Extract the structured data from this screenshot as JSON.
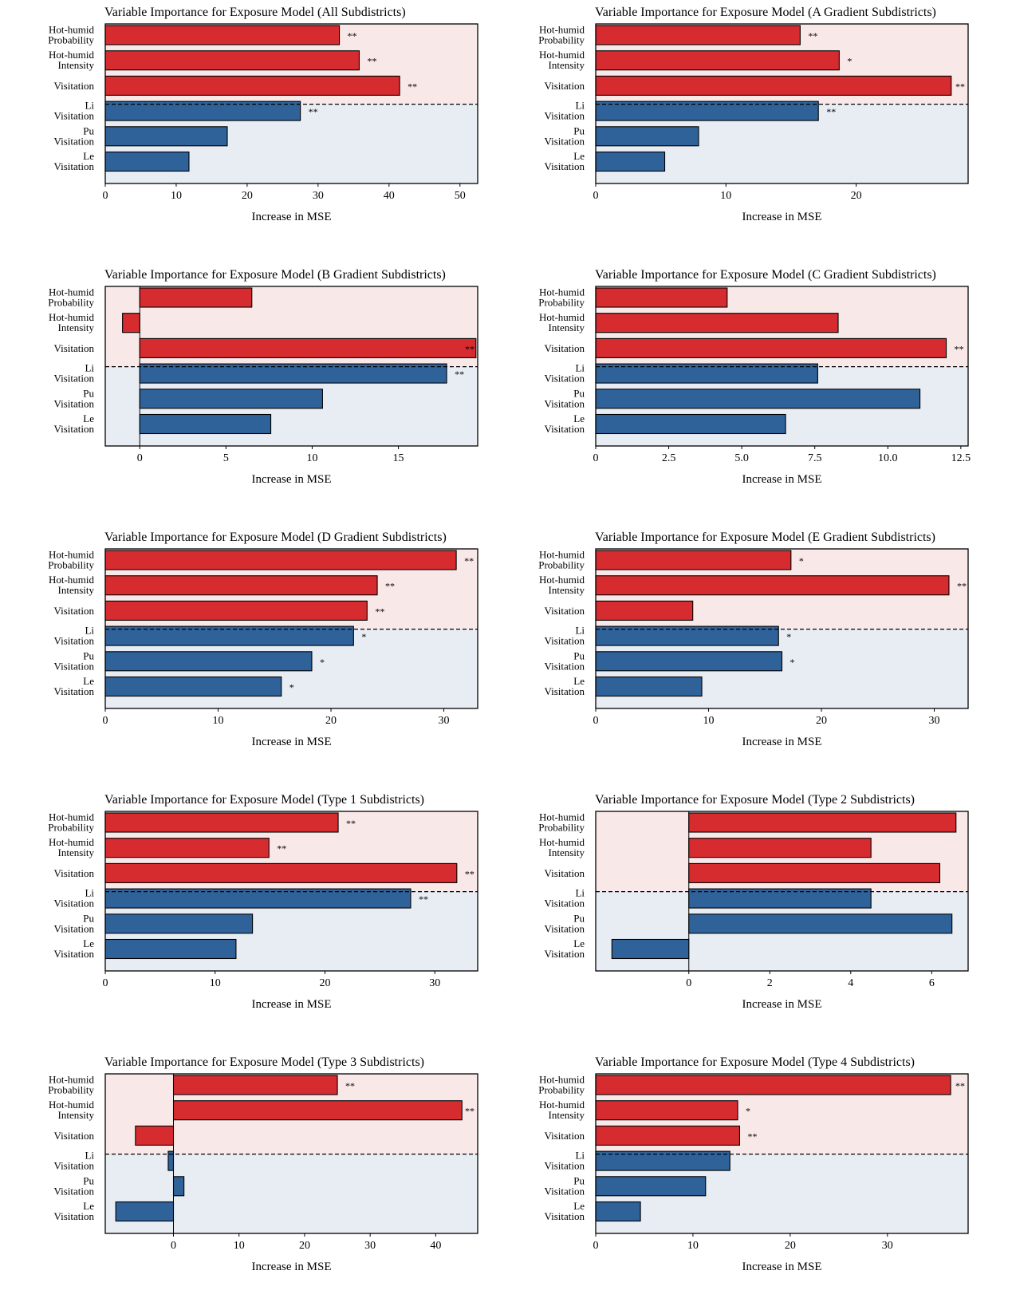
{
  "chart_data": [
    {
      "type": "bar",
      "title": "Variable Importance for Exposure Model (All Subdistricts)",
      "xlabel": "Increase in MSE",
      "categories": [
        "Hot-humid\nProbability",
        "Hot-humid\nIntensity",
        "Visitation",
        "Li\nVisitation",
        "Pu\nVisitation",
        "Le\nVisitation"
      ],
      "values": [
        33,
        35.8,
        41.5,
        27.5,
        17.2,
        11.8
      ],
      "significance": [
        "**",
        "**",
        "**",
        "**",
        "",
        ""
      ],
      "xlim": [
        0,
        52.5
      ],
      "xticks": [
        0,
        10,
        20,
        30,
        40,
        50
      ],
      "xtick_labels": [
        "0",
        "10",
        "20",
        "30",
        "40",
        "50"
      ],
      "colors": {
        "heat": "#d62c30",
        "visit": "#2f6299",
        "heat_bg": "#f9e8e8",
        "visit_bg": "#e8edf4"
      }
    },
    {
      "type": "bar",
      "title": "Variable Importance for Exposure Model (A Gradient Subdistricts)",
      "xlabel": "Increase in MSE",
      "categories": [
        "Hot-humid\nProbability",
        "Hot-humid\nIntensity",
        "Visitation",
        "Li\nVisitation",
        "Pu\nVisitation",
        "Le\nVisitation"
      ],
      "values": [
        15.7,
        18.7,
        27.3,
        17.1,
        7.9,
        5.3
      ],
      "significance": [
        "**",
        "*",
        "**",
        "**",
        "",
        ""
      ],
      "xlim": [
        0,
        28.6
      ],
      "xticks": [
        0,
        10,
        20
      ],
      "xtick_labels": [
        "0",
        "10",
        "20"
      ],
      "colors": {
        "heat": "#d62c30",
        "visit": "#2f6299",
        "heat_bg": "#f9e8e8",
        "visit_bg": "#e8edf4"
      }
    },
    {
      "type": "bar",
      "title": "Variable Importance for Exposure Model (B Gradient Subdistricts)",
      "xlabel": "Increase in MSE",
      "categories": [
        "Hot-humid\nProbability",
        "Hot-humid\nIntensity",
        "Visitation",
        "Li\nVisitation",
        "Pu\nVisitation",
        "Le\nVisitation"
      ],
      "values": [
        6.5,
        -1.0,
        19.5,
        17.8,
        10.6,
        7.6
      ],
      "significance": [
        "",
        "",
        "**",
        "**",
        "",
        ""
      ],
      "xlim": [
        -2.0,
        19.6
      ],
      "xticks": [
        0,
        5,
        10,
        15
      ],
      "xtick_labels": [
        "0",
        "5",
        "10",
        "15"
      ],
      "colors": {
        "heat": "#d62c30",
        "visit": "#2f6299",
        "heat_bg": "#f9e8e8",
        "visit_bg": "#e8edf4"
      }
    },
    {
      "type": "bar",
      "title": "Variable Importance for Exposure Model (C Gradient Subdistricts)",
      "xlabel": "Increase in MSE",
      "categories": [
        "Hot-humid\nProbability",
        "Hot-humid\nIntensity",
        "Visitation",
        "Li\nVisitation",
        "Pu\nVisitation",
        "Le\nVisitation"
      ],
      "values": [
        4.5,
        8.3,
        12.0,
        7.6,
        11.1,
        6.5
      ],
      "significance": [
        "",
        "",
        "**",
        "",
        "",
        ""
      ],
      "xlim": [
        0,
        12.75
      ],
      "xticks": [
        0,
        2.5,
        5.0,
        7.5,
        10.0,
        12.5
      ],
      "xtick_labels": [
        "0",
        "2.5",
        "5.0",
        "7.5",
        "10.0",
        "12.5"
      ],
      "colors": {
        "heat": "#d62c30",
        "visit": "#2f6299",
        "heat_bg": "#f9e8e8",
        "visit_bg": "#e8edf4"
      }
    },
    {
      "type": "bar",
      "title": "Variable Importance for Exposure Model (D Gradient Subdistricts)",
      "xlabel": "Increase in MSE",
      "categories": [
        "Hot-humid\nProbability",
        "Hot-humid\nIntensity",
        "Visitation",
        "Li\nVisitation",
        "Pu\nVisitation",
        "Le\nVisitation"
      ],
      "values": [
        31.1,
        24.1,
        23.2,
        22.0,
        18.3,
        15.6
      ],
      "significance": [
        "**",
        "**",
        "**",
        "*",
        "*",
        "*"
      ],
      "xlim": [
        0,
        33.0
      ],
      "xticks": [
        0,
        10,
        20,
        30
      ],
      "xtick_labels": [
        "0",
        "10",
        "20",
        "30"
      ],
      "colors": {
        "heat": "#d62c30",
        "visit": "#2f6299",
        "heat_bg": "#f9e8e8",
        "visit_bg": "#e8edf4"
      }
    },
    {
      "type": "bar",
      "title": "Variable Importance for Exposure Model (E Gradient Subdistricts)",
      "xlabel": "Increase in MSE",
      "categories": [
        "Hot-humid\nProbability",
        "Hot-humid\nIntensity",
        "Visitation",
        "Li\nVisitation",
        "Pu\nVisitation",
        "Le\nVisitation"
      ],
      "values": [
        17.3,
        31.3,
        8.6,
        16.2,
        16.5,
        9.4
      ],
      "significance": [
        "*",
        "**",
        "",
        "*",
        "*",
        ""
      ],
      "xlim": [
        0,
        33.0
      ],
      "xticks": [
        0,
        10,
        20,
        30
      ],
      "xtick_labels": [
        "0",
        "10",
        "20",
        "30"
      ],
      "colors": {
        "heat": "#d62c30",
        "visit": "#2f6299",
        "heat_bg": "#f9e8e8",
        "visit_bg": "#e8edf4"
      }
    },
    {
      "type": "bar",
      "title": "Variable Importance for Exposure Model (Type 1 Subdistricts)",
      "xlabel": "Increase in MSE",
      "categories": [
        "Hot-humid\nProbability",
        "Hot-humid\nIntensity",
        "Visitation",
        "Li\nVisitation",
        "Pu\nVisitation",
        "Le\nVisitation"
      ],
      "values": [
        21.2,
        14.9,
        32.0,
        27.8,
        13.4,
        11.9
      ],
      "significance": [
        "**",
        "**",
        "**",
        "**",
        "",
        ""
      ],
      "xlim": [
        0,
        33.9
      ],
      "xticks": [
        0,
        10,
        20,
        30
      ],
      "xtick_labels": [
        "0",
        "10",
        "20",
        "30"
      ],
      "colors": {
        "heat": "#d62c30",
        "visit": "#2f6299",
        "heat_bg": "#f9e8e8",
        "visit_bg": "#e8edf4"
      }
    },
    {
      "type": "bar",
      "title": "Variable Importance for Exposure Model (Type 2 Subdistricts)",
      "xlabel": "Increase in MSE",
      "categories": [
        "Hot-humid\nProbability",
        "Hot-humid\nIntensity",
        "Visitation",
        "Li\nVisitation",
        "Pu\nVisitation",
        "Le\nVisitation"
      ],
      "values": [
        6.6,
        4.5,
        6.2,
        4.5,
        6.5,
        -1.9
      ],
      "significance": [
        "",
        "",
        "",
        "",
        "",
        ""
      ],
      "xlim": [
        -2.3,
        6.9
      ],
      "xticks": [
        0,
        2,
        4,
        6
      ],
      "xtick_labels": [
        "0",
        "2",
        "4",
        "6"
      ],
      "colors": {
        "heat": "#d62c30",
        "visit": "#2f6299",
        "heat_bg": "#f9e8e8",
        "visit_bg": "#e8edf4"
      }
    },
    {
      "type": "bar",
      "title": "Variable Importance for Exposure Model (Type 3 Subdistricts)",
      "xlabel": "Increase in MSE",
      "categories": [
        "Hot-humid\nProbability",
        "Hot-humid\nIntensity",
        "Visitation",
        "Li\nVisitation",
        "Pu\nVisitation",
        "Le\nVisitation"
      ],
      "values": [
        25.0,
        44.0,
        -5.8,
        -0.8,
        1.6,
        -8.8
      ],
      "significance": [
        "**",
        "**",
        "",
        "",
        "",
        ""
      ],
      "xlim": [
        -10.4,
        46.4
      ],
      "xticks": [
        0,
        10,
        20,
        30,
        40
      ],
      "xtick_labels": [
        "0",
        "10",
        "20",
        "30",
        "40"
      ],
      "colors": {
        "heat": "#d62c30",
        "visit": "#2f6299",
        "heat_bg": "#f9e8e8",
        "visit_bg": "#e8edf4"
      }
    },
    {
      "type": "bar",
      "title": "Variable Importance for Exposure Model (Type 4 Subdistricts)",
      "xlabel": "Increase in MSE",
      "categories": [
        "Hot-humid\nProbability",
        "Hot-humid\nIntensity",
        "Visitation",
        "Li\nVisitation",
        "Pu\nVisitation",
        "Le\nVisitation"
      ],
      "values": [
        36.5,
        14.6,
        14.8,
        13.8,
        11.3,
        4.6
      ],
      "significance": [
        "**",
        "*",
        "**",
        "",
        "",
        ""
      ],
      "xlim": [
        0,
        38.3
      ],
      "xticks": [
        0,
        10,
        20,
        30
      ],
      "xtick_labels": [
        "0",
        "10",
        "20",
        "30"
      ],
      "colors": {
        "heat": "#d62c30",
        "visit": "#2f6299",
        "heat_bg": "#f9e8e8",
        "visit_bg": "#e8edf4"
      }
    }
  ]
}
